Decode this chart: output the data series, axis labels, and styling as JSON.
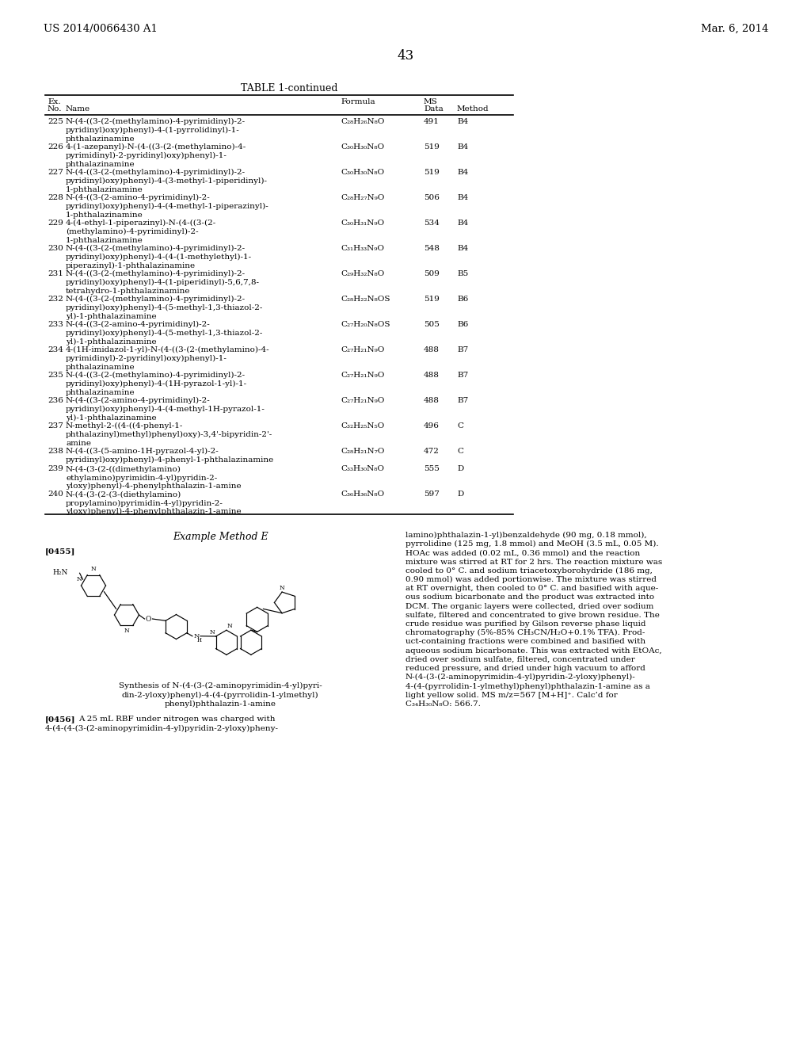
{
  "header_left": "US 2014/0066430 A1",
  "header_right": "Mar. 6, 2014",
  "page_number": "43",
  "table_title": "TABLE 1-continued",
  "background_color": "#ffffff",
  "text_color": "#000000",
  "rows": [
    [
      "225",
      "N-(4-((3-(2-(methylamino)-4-pyrimidinyl)-2-\npyridinyl)oxy)phenyl)-4-(1-pyrrolidinyl)-1-\nphthalazinamine",
      "C₂₈H₂₆N₈O",
      "491",
      "B4",
      3
    ],
    [
      "226",
      "4-(1-azepanyl)-N-(4-((3-(2-(methylamino)-4-\npyrimidinyl)-2-pyridinyl)oxy)phenyl)-1-\nphthalazinamine",
      "C₃₀H₃₀N₈O",
      "519",
      "B4",
      3
    ],
    [
      "227",
      "N-(4-((3-(2-(methylamino)-4-pyrimidinyl)-2-\npyridinyl)oxy)phenyl)-4-(3-methyl-1-piperidinyl)-\n1-phthalazinamine",
      "C₃₀H₃₀N₈O",
      "519",
      "B4",
      3
    ],
    [
      "228",
      "N-(4-((3-(2-amino-4-pyrimidinyl)-2-\npyridinyl)oxy)phenyl)-4-(4-methyl-1-piperazinyl)-\n1-phthalazinamine",
      "C₂₈H₂₇N₉O",
      "506",
      "B4",
      3
    ],
    [
      "229",
      "4-(4-ethyl-1-piperazinyl)-N-(4-((3-(2-\n(methylamino)-4-pyrimidinyl)-2-\n1-phthalazinamine",
      "C₃₀H₃₁N₉O",
      "534",
      "B4",
      3
    ],
    [
      "230",
      "N-(4-((3-(2-(methylamino)-4-pyrimidinyl)-2-\npyridinyl)oxy)phenyl)-4-(4-(1-methylethyl)-1-\npiperazinyl)-1-phthalazinamine",
      "C₃₁H₃₃N₉O",
      "548",
      "B4",
      3
    ],
    [
      "231",
      "N-(4-((3-(2-(methylamino)-4-pyrimidinyl)-2-\npyridinyl)oxy)phenyl)-4-(1-piperidinyl)-5,6,7,8-\ntetrahydro-1-phthalazinamine",
      "C₂₉H₃₂N₈O",
      "509",
      "B5",
      3
    ],
    [
      "232",
      "N-(4-((3-(2-(methylamino)-4-pyrimidinyl)-2-\npyridinyl)oxy)phenyl)-4-(5-methyl-1,3-thiazol-2-\nyl)-1-phthalazinamine",
      "C₂₈H₂₂N₈OS",
      "519",
      "B6",
      3
    ],
    [
      "233",
      "N-(4-((3-(2-amino-4-pyrimidinyl)-2-\npyridinyl)oxy)phenyl)-4-(5-methyl-1,3-thiazol-2-\nyl)-1-phthalazinamine",
      "C₂₇H₂₀N₈OS",
      "505",
      "B6",
      3
    ],
    [
      "234",
      "4-(1H-imidazol-1-yl)-N-(4-((3-(2-(methylamino)-4-\npyrimidinyl)-2-pyridinyl)oxy)phenyl)-1-\nphthalazinamine",
      "C₂₇H₂₁N₉O",
      "488",
      "B7",
      3
    ],
    [
      "235",
      "N-(4-((3-(2-(methylamino)-4-pyrimidinyl)-2-\npyridinyl)oxy)phenyl)-4-(1H-pyrazol-1-yl)-1-\nphthalazinamine",
      "C₂₇H₂₁N₉O",
      "488",
      "B7",
      3
    ],
    [
      "236",
      "N-(4-((3-(2-amino-4-pyrimidinyl)-2-\npyridinyl)oxy)phenyl)-4-(4-methyl-1H-pyrazol-1-\nyl)-1-phthalazinamine",
      "C₂₇H₂₁N₉O",
      "488",
      "B7",
      3
    ],
    [
      "237",
      "N-methyl-2-((4-((4-phenyl-1-\nphthalazinyl)methyl)phenyl)oxy)-3,4'-bipyridin-2'-\namine",
      "C₃₂H₂₅N₅O",
      "496",
      "C",
      3
    ],
    [
      "238",
      "N-(4-((3-(5-amino-1H-pyrazol-4-yl)-2-\npyridinyl)oxy)phenyl)-4-phenyl-1-phthalazinamine",
      "C₂₈H₂₁N₇O",
      "472",
      "C",
      2
    ],
    [
      "239",
      "N-(4-(3-(2-((dimethylamino)\nethylamino)pyrimidin-4-yl)pyridin-2-\nyloxy)phenyl)-4-phenylphthalazin-1-amine",
      "C₃₃H₃₀N₈O",
      "555",
      "D",
      3
    ],
    [
      "240",
      "N-(4-(3-(2-(3-(diethylamino)\npropylamino)pyrimidin-4-yl)pyridin-2-\nyloxy)phenyl)-4-phenylphthalazin-1-amine",
      "C₃₆H₃₆N₈O",
      "597",
      "D",
      3
    ]
  ],
  "example_method_title": "Example Method E",
  "para0455_label": "[0455]",
  "para0456_label": "[0456]",
  "synthesis_title_line1": "Synthesis of N-(4-(3-(2-aminopyrimidin-4-yl)pyri-",
  "synthesis_title_line2": "din-2-yloxy)phenyl)-4-(4-(pyrrolidin-1-ylmethyl)",
  "synthesis_title_line3": "phenyl)phthalazin-1-amine",
  "para0456_col1_line1": "A 25 mL RBF under nitrogen was charged with",
  "para0456_col1_line2": "4-(4-(4-(3-(2-aminopyrimidin-4-yl)pyridin-2-yloxy)pheny-",
  "right_col_lines": [
    "lamino)phthalazin-1-yl)benzaldehyde (90 mg, 0.18 mmol),",
    "pyrrolidine (125 mg, 1.8 mmol) and MeOH (3.5 mL, 0.05 M).",
    "HOAc was added (0.02 mL, 0.36 mmol) and the reaction",
    "mixture was stirred at RT for 2 hrs. The reaction mixture was",
    "cooled to 0° C. and sodium triacetoxyborohydride (186 mg,",
    "0.90 mmol) was added portionwise. The mixture was stirred",
    "at RT overnight, then cooled to 0° C. and basified with aque-",
    "ous sodium bicarbonate and the product was extracted into",
    "DCM. The organic layers were collected, dried over sodium",
    "sulfate, filtered and concentrated to give brown residue. The",
    "crude residue was purified by Gilson reverse phase liquid",
    "chromatography (5%-85% CH₃CN/H₂O+0.1% TFA). Prod-",
    "uct-containing fractions were combined and basified with",
    "aqueous sodium bicarbonate. This was extracted with EtOAc,",
    "dried over sodium sulfate, filtered, concentrated under",
    "reduced pressure, and dried under high vacuum to afford",
    "N-(4-(3-(2-aminopyrimidin-4-yl)pyridin-2-yloxy)phenyl)-",
    "4-(4-(pyrrolidin-1-ylmethyl)phenyl)phthalazin-1-amine as a",
    "light yellow solid. MS m/z=567 [M+H]⁺. Calc’d for",
    "C₃₄H₃₀N₈O: 566.7."
  ]
}
